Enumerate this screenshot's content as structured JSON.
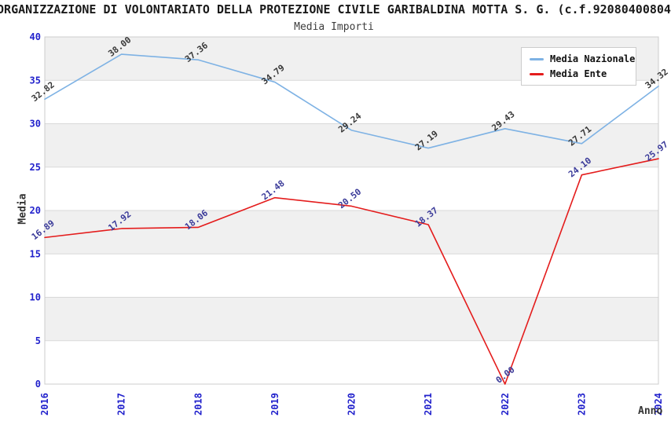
{
  "chart_data": {
    "type": "line",
    "title": "ORGANIZZAZIONE DI VOLONTARIATO DELLA PROTEZIONE CIVILE GARIBALDINA MOTTA S. G. (c.f.92080400804",
    "subtitle": "Media Importi",
    "xlabel": "Anno",
    "ylabel": "Media",
    "categories": [
      "2016",
      "2017",
      "2018",
      "2019",
      "2020",
      "2021",
      "2022",
      "2023",
      "2024"
    ],
    "series": [
      {
        "name": "Media Nazionale",
        "color": "#7eb2e4",
        "label_color": "#383838",
        "values": [
          32.82,
          38.0,
          37.36,
          34.79,
          29.24,
          27.19,
          29.43,
          27.71,
          34.32
        ]
      },
      {
        "name": "Media Ente",
        "color": "#e41c1c",
        "label_color": "#3a3a99",
        "values": [
          16.89,
          17.92,
          18.06,
          21.48,
          20.5,
          18.37,
          0.0,
          24.1,
          25.97
        ]
      }
    ],
    "ylim": [
      0,
      40
    ],
    "yticks": [
      0,
      5,
      10,
      15,
      20,
      25,
      30,
      35,
      40
    ],
    "legend_position": "top-right",
    "grid": "horizontal-bands-alternating",
    "colors": {
      "tick_label": "#2222cc",
      "band": "#f0f0f0",
      "gridline": "#d9d9d9",
      "plot_border": "#cccccc",
      "title_text": "#1a1a1a",
      "subtitle_text": "#3d3d3d",
      "axis_title_text": "#333333"
    }
  }
}
